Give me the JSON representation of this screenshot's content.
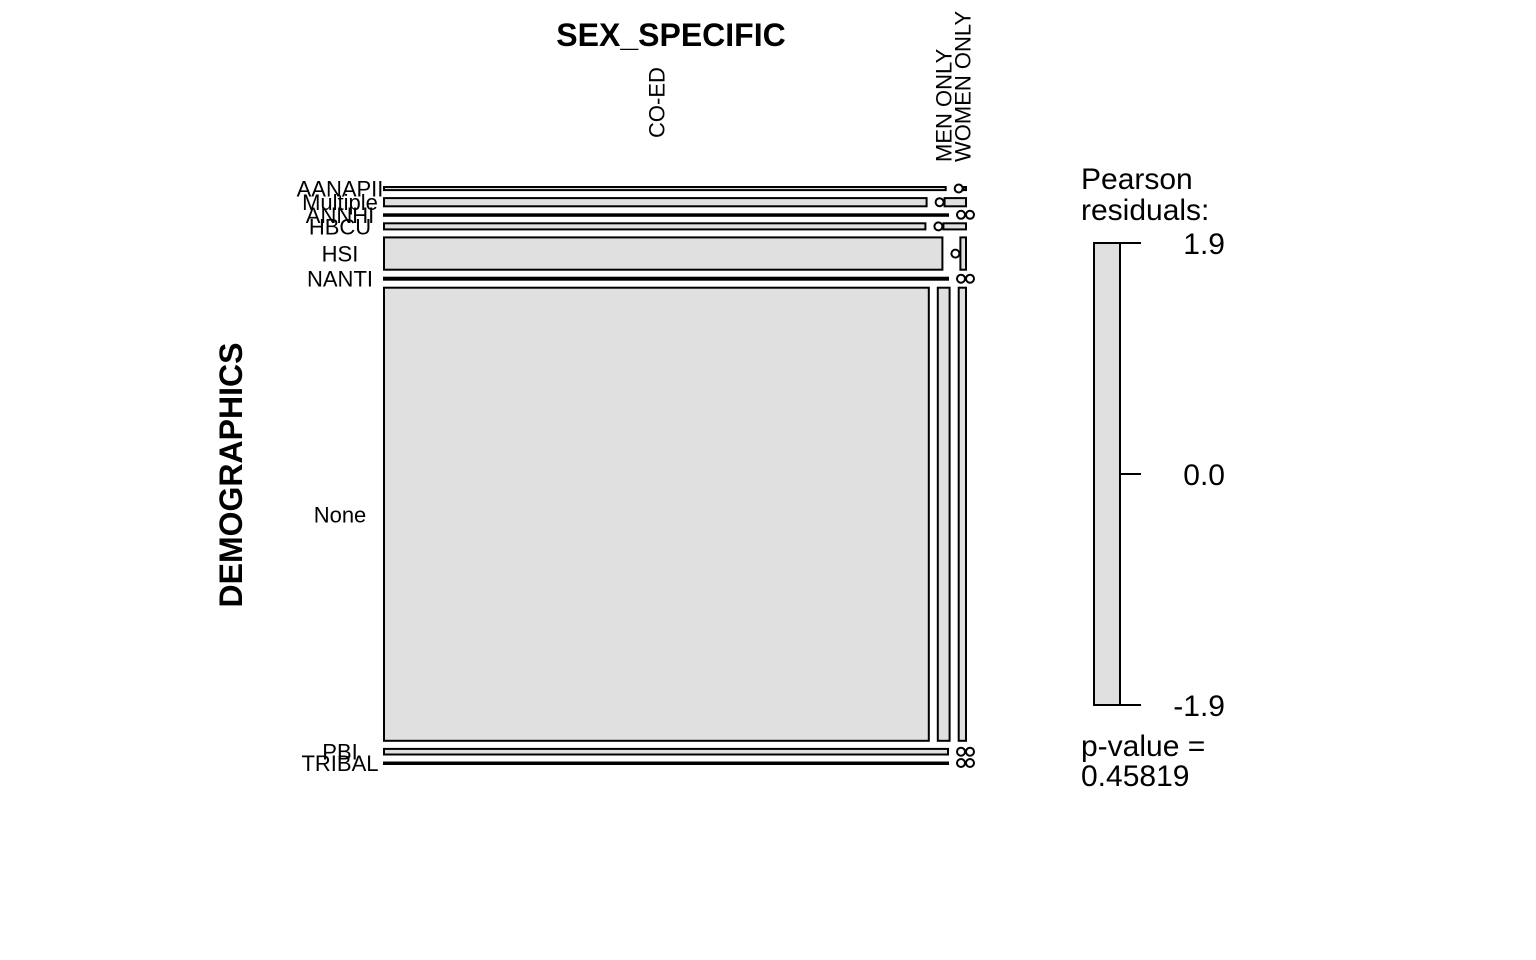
{
  "chart_data": {
    "type": "mosaic",
    "col_variable": "SEX_SPECIFIC",
    "row_variable": "DEMOGRAPHICS",
    "columns": [
      "CO-ED",
      "MEN ONLY",
      "WOMEN ONLY"
    ],
    "rows": [
      "AANAPII",
      "Multiple",
      "ANNHI",
      "HBCU",
      "HSI",
      "NANTI",
      "None",
      "PBI",
      "TRIBAL"
    ],
    "row_proportions": [
      0.006,
      0.016,
      0.002,
      0.012,
      0.063,
      0.004,
      0.885,
      0.011,
      0.002
    ],
    "cell_proportions": [
      [
        0.996,
        0.0,
        0.004
      ],
      [
        0.962,
        0.0,
        0.038
      ],
      [
        1.0,
        0.0,
        0.0
      ],
      [
        0.96,
        0.0,
        0.04
      ],
      [
        0.99,
        0.0,
        0.01
      ],
      [
        1.0,
        0.0,
        0.0
      ],
      [
        0.966,
        0.021,
        0.013
      ],
      [
        1.0,
        0.0,
        0.0
      ],
      [
        1.0,
        0.0,
        0.0
      ]
    ],
    "legend": {
      "title_line1": "Pearson",
      "title_line2": "residuals:",
      "ticks": [
        "1.9",
        "0.0",
        "-1.9"
      ],
      "tick_values": [
        1.9,
        0.0,
        -1.9
      ],
      "pvalue_line1": "p-value =",
      "pvalue_line2": "0.45819"
    },
    "fill_color": "#e0e0e0",
    "stroke_color": "#000000"
  }
}
